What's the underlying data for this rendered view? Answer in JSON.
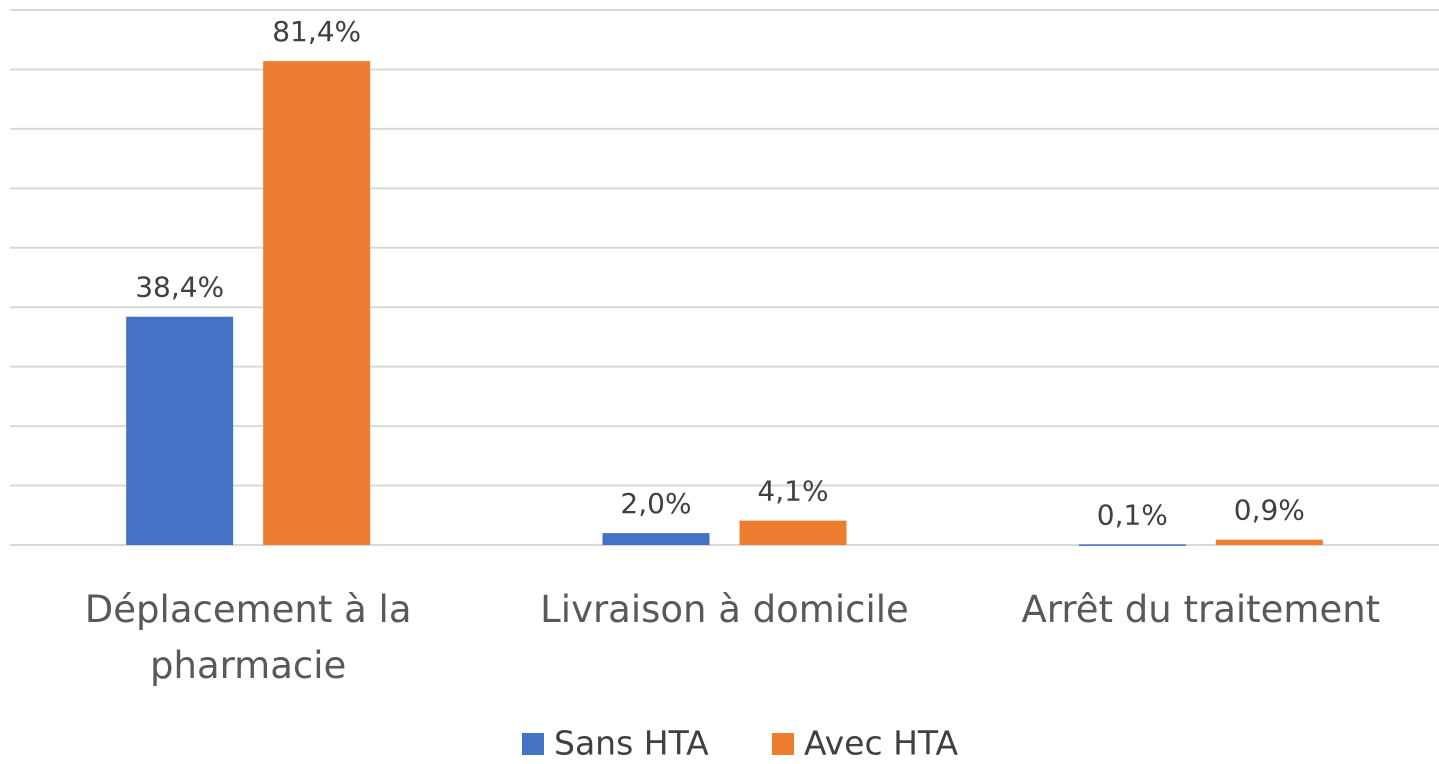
{
  "chart_data": {
    "type": "bar",
    "categories": [
      "Déplacement à la pharmacie",
      "Livraison à domicile",
      "Arrêt du traitement"
    ],
    "series": [
      {
        "name": "Sans HTA",
        "color": "#4472c4",
        "values": [
          38.4,
          2.0,
          0.1
        ],
        "value_labels": [
          "38,4%",
          "2,0%",
          "0,1%"
        ]
      },
      {
        "name": "Avec HTA",
        "color": "#ed7d31",
        "values": [
          81.4,
          4.1,
          0.9
        ],
        "value_labels": [
          "81,4%",
          "4,1%",
          "0,9%"
        ]
      }
    ],
    "ylim": [
      0,
      90
    ],
    "yticks": [
      0,
      10,
      20,
      30,
      40,
      50,
      60,
      70,
      80,
      90
    ],
    "grid": true,
    "show_ytick_labels": false,
    "legend": "bottom"
  }
}
